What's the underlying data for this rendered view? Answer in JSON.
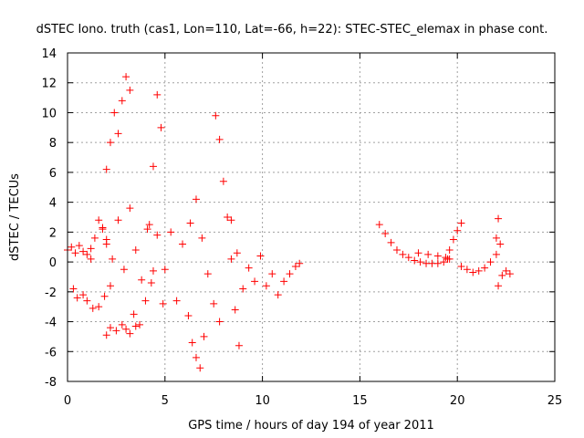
{
  "chart_data": {
    "type": "scatter",
    "title": "dSTEC Iono. truth (cas1, Lon=110, Lat=-66, h=22): STEC-STEC_elemax in phase cont.",
    "xlabel": "GPS time / hours of day 194 of year 2011",
    "ylabel": "dSTEC  / TECUs",
    "xlim": [
      0,
      25
    ],
    "ylim": [
      -8,
      14
    ],
    "x_ticks": [
      0,
      5,
      10,
      15,
      20,
      25
    ],
    "y_ticks": [
      -8,
      -6,
      -4,
      -2,
      0,
      2,
      4,
      6,
      8,
      10,
      12,
      14
    ],
    "grid": true,
    "marker": "+",
    "color": "#ff0000",
    "series": [
      {
        "segments": [
          {
            "x": [
              0.0,
              0.2,
              0.4,
              0.6,
              0.8,
              1.0,
              1.2
            ],
            "y": [
              0.8,
              1.0,
              0.6,
              1.1,
              0.7,
              0.5,
              0.9
            ]
          },
          {
            "x": [
              0.3,
              0.5,
              0.8,
              1.0,
              1.3,
              1.6,
              1.9,
              2.2
            ],
            "y": [
              -1.8,
              -2.4,
              -2.2,
              -2.6,
              -3.1,
              -3.0,
              -2.3,
              -1.6
            ]
          },
          {
            "x": [
              1.2,
              1.4,
              1.6,
              1.8,
              2.0
            ],
            "y": [
              0.2,
              1.6,
              2.8,
              2.3,
              1.2
            ]
          },
          {
            "x": [
              1.8,
              2.0,
              2.2,
              2.4,
              2.6,
              2.8,
              3.0,
              3.2
            ],
            "y": [
              2.2,
              6.2,
              8.0,
              10.0,
              8.6,
              10.8,
              12.4,
              11.5
            ]
          },
          {
            "x": [
              2.0,
              2.2,
              2.5,
              2.8,
              3.0,
              3.2,
              3.5
            ],
            "y": [
              -4.9,
              -4.4,
              -4.6,
              -4.2,
              -4.5,
              -4.8,
              -4.3
            ]
          },
          {
            "x": [
              2.0,
              2.3,
              2.6,
              2.9,
              3.2,
              3.5,
              3.8,
              4.1,
              4.4
            ],
            "y": [
              1.5,
              0.2,
              2.8,
              -0.5,
              3.6,
              0.8,
              -1.2,
              2.2,
              -0.6
            ]
          },
          {
            "x": [
              3.4,
              3.7,
              4.0,
              4.3,
              4.6,
              4.9
            ],
            "y": [
              -3.5,
              -4.2,
              -2.6,
              -1.4,
              1.8,
              -2.8
            ]
          },
          {
            "x": [
              4.2,
              4.4,
              4.6,
              4.8
            ],
            "y": [
              2.5,
              6.4,
              11.2,
              9.0
            ]
          },
          {
            "x": [
              5.0,
              5.3,
              5.6,
              5.9,
              6.2,
              6.4,
              6.6,
              6.8,
              7.0
            ],
            "y": [
              -0.5,
              2.0,
              -2.6,
              1.2,
              -3.6,
              -5.4,
              -6.4,
              -7.1,
              -5.0
            ]
          },
          {
            "x": [
              6.3,
              6.6,
              6.9,
              7.2,
              7.5,
              7.8
            ],
            "y": [
              2.6,
              4.2,
              1.6,
              -0.8,
              -2.8,
              -4.0
            ]
          },
          {
            "x": [
              7.6,
              7.8,
              8.0,
              8.2,
              8.4,
              8.6,
              8.8
            ],
            "y": [
              9.8,
              8.2,
              5.4,
              3.0,
              0.2,
              -3.2,
              -5.6
            ]
          },
          {
            "x": [
              8.4,
              8.7,
              9.0,
              9.3,
              9.6,
              9.9,
              10.2,
              10.5
            ],
            "y": [
              2.8,
              0.6,
              -1.8,
              -0.4,
              -1.3,
              0.4,
              -1.6,
              -0.8
            ]
          },
          {
            "x": [
              10.8,
              11.1,
              11.4,
              11.7,
              11.9
            ],
            "y": [
              -2.2,
              -1.3,
              -0.8,
              -0.3,
              -0.1
            ]
          },
          {
            "x": [
              16.0,
              16.3,
              16.6,
              16.9,
              17.2,
              17.5,
              17.8,
              18.1,
              18.4,
              18.7,
              19.0,
              19.3,
              19.6
            ],
            "y": [
              2.5,
              1.9,
              1.3,
              0.8,
              0.5,
              0.3,
              0.1,
              0.0,
              -0.1,
              -0.1,
              -0.1,
              0.0,
              0.2
            ]
          },
          {
            "x": [
              18.0,
              18.5,
              19.0,
              19.5
            ],
            "y": [
              0.6,
              0.5,
              0.4,
              0.2
            ]
          },
          {
            "x": [
              19.4,
              19.6,
              19.8,
              20.0,
              20.2
            ],
            "y": [
              0.3,
              0.8,
              1.5,
              2.1,
              2.6
            ]
          },
          {
            "x": [
              20.2,
              20.5,
              20.8,
              21.1,
              21.4,
              21.7,
              22.0
            ],
            "y": [
              -0.3,
              -0.5,
              -0.7,
              -0.6,
              -0.4,
              0.0,
              0.5
            ]
          },
          {
            "x": [
              22.0,
              22.1,
              22.2
            ],
            "y": [
              1.6,
              2.9,
              1.2
            ]
          },
          {
            "x": [
              22.1,
              22.3,
              22.5,
              22.7
            ],
            "y": [
              -1.6,
              -0.9,
              -0.6,
              -0.8
            ]
          }
        ]
      }
    ]
  }
}
